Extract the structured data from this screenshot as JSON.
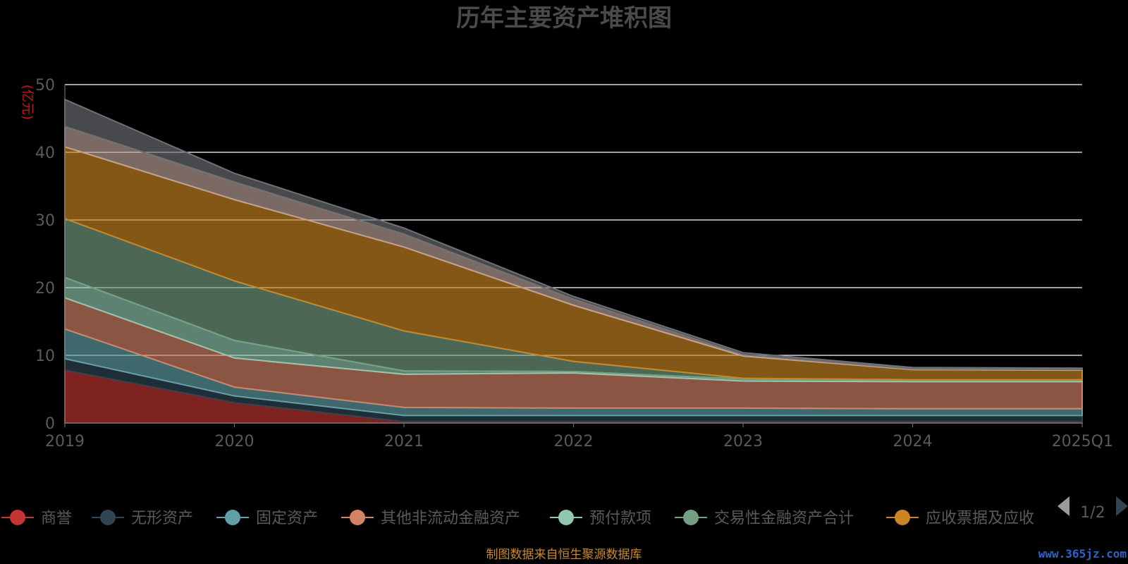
{
  "chart_data": {
    "type": "area",
    "stacked": true,
    "title": "历年主要资产堆积图",
    "ylabel": "(亿元)",
    "categories": [
      "2019",
      "2020",
      "2021",
      "2022",
      "2023",
      "2024",
      "2025Q1"
    ],
    "ylim": [
      0,
      50
    ],
    "yticks": [
      0,
      10,
      20,
      30,
      40,
      50
    ],
    "grid": true,
    "series": [
      {
        "name": "商誉",
        "color": "#c23531",
        "values": [
          7.8,
          3.0,
          0.2,
          0.2,
          0.2,
          0.2,
          0.2
        ]
      },
      {
        "name": "无形资产",
        "color": "#2f4554",
        "values": [
          1.7,
          1.0,
          0.9,
          0.9,
          0.9,
          0.9,
          0.9
        ]
      },
      {
        "name": "固定资产",
        "color": "#61a0a8",
        "values": [
          4.4,
          1.3,
          1.2,
          1.1,
          1.1,
          1.0,
          1.0
        ]
      },
      {
        "name": "其他非流动金融资产",
        "color": "#d48265",
        "values": [
          4.6,
          4.3,
          4.9,
          5.2,
          4.0,
          4.0,
          4.0
        ]
      },
      {
        "name": "预付款项",
        "color": "#91c7ae",
        "values": [
          3.0,
          2.6,
          0.5,
          0.2,
          0.3,
          0.2,
          0.2
        ]
      },
      {
        "name": "交易性金融资产合计",
        "color": "#749f83",
        "values": [
          8.7,
          8.8,
          5.9,
          1.5,
          0.1,
          0.1,
          0.1
        ]
      },
      {
        "name": "应收票据及应收",
        "color": "#ca8622",
        "values": [
          10.6,
          12.0,
          12.4,
          8.3,
          3.3,
          1.5,
          1.4
        ]
      },
      {
        "name": "",
        "color": "#bda29a",
        "values": [
          3.0,
          2.6,
          1.9,
          0.9,
          0.2,
          0.1,
          0.1
        ]
      },
      {
        "name": "",
        "color": "#6e7074",
        "values": [
          4.0,
          1.3,
          0.9,
          0.4,
          0.3,
          0.2,
          0.2
        ]
      }
    ]
  },
  "legend": {
    "page_indicator": "1/2"
  },
  "footer": {
    "source_text": "制图数据来自恒生聚源数据库"
  },
  "watermark": {
    "text": "www.365jz.com"
  }
}
